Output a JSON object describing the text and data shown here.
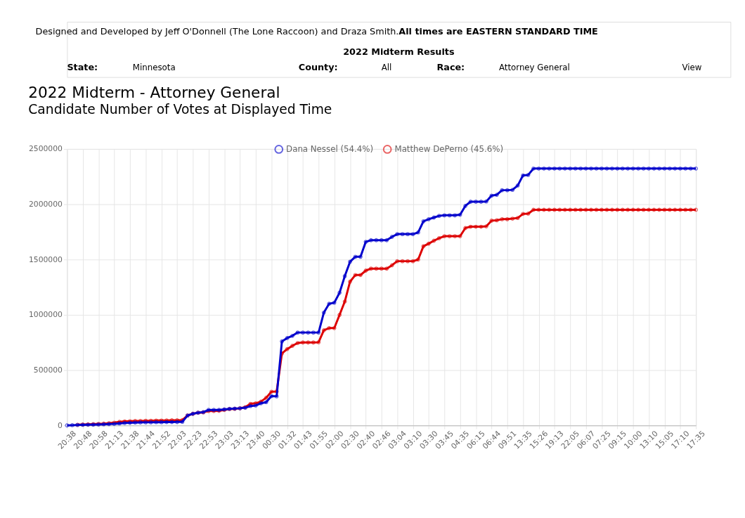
{
  "chart_data": {
    "type": "line",
    "title": "2022 Midterm - Attorney General",
    "subtitle": "Candidate Number of Votes at Displayed Time",
    "annotations": [
      "Designed and Developed by Jeff O'Donnell (The Lone Raccoon) and Draza Smith.",
      "All times are EASTERN STANDARD TIME",
      "2022 Midterm Results",
      "State:",
      "Minnesota",
      "County:",
      "All",
      "Race:",
      "Attorney General",
      "View"
    ],
    "categories": [
      "20:38",
      null,
      null,
      "20:48",
      null,
      null,
      "20:58",
      null,
      null,
      "21:13",
      null,
      null,
      "21:38",
      null,
      null,
      "21:44",
      null,
      null,
      "21:52",
      null,
      null,
      "22:03",
      null,
      null,
      "22:23",
      null,
      null,
      "22:53",
      null,
      null,
      "23:03",
      null,
      null,
      "23:13",
      null,
      null,
      "23:40",
      null,
      null,
      "00:30",
      null,
      null,
      "01:32",
      null,
      null,
      "01:43",
      null,
      null,
      "01:55",
      null,
      null,
      "02:00",
      null,
      null,
      "02:30",
      null,
      null,
      "02:40",
      null,
      null,
      "02:46",
      null,
      null,
      "03:04",
      null,
      null,
      "03:10",
      null,
      null,
      "03:30",
      null,
      null,
      "03:45",
      null,
      null,
      "04:35",
      null,
      null,
      "06:15",
      null,
      null,
      "06:44",
      null,
      null,
      "09:51",
      null,
      null,
      "13:35",
      null,
      null,
      "15:26",
      null,
      null,
      "19:13",
      null,
      null,
      "22:05",
      null,
      null,
      "06:07",
      null,
      null,
      "07:25",
      null,
      null,
      "09:15",
      null,
      null,
      "10:00",
      null,
      null,
      "13:10",
      null,
      null,
      "15:05",
      null,
      null,
      "17:10",
      null,
      null,
      "17:35"
    ],
    "series": [
      {
        "name": "Dana Nessel (54.4%)",
        "color": "#0000cc",
        "values": [
          0,
          2000,
          4000,
          5000,
          6000,
          7000,
          8000,
          10000,
          12000,
          14000,
          18000,
          22000,
          24000,
          26000,
          27000,
          28000,
          28000,
          29000,
          29000,
          30000,
          30000,
          31000,
          32000,
          90000,
          105000,
          115000,
          120000,
          140000,
          140000,
          140000,
          145000,
          150000,
          152000,
          155000,
          160000,
          175000,
          180000,
          200000,
          210000,
          265000,
          263000,
          760000,
          790000,
          810000,
          840000,
          840000,
          840000,
          840000,
          840000,
          1020000,
          1100000,
          1110000,
          1200000,
          1350000,
          1480000,
          1525000,
          1525000,
          1660000,
          1675000,
          1675000,
          1675000,
          1675000,
          1705000,
          1730000,
          1730000,
          1730000,
          1730000,
          1745000,
          1846000,
          1865000,
          1880000,
          1895000,
          1900000,
          1900000,
          1900000,
          1905000,
          1985000,
          2023000,
          2023000,
          2023000,
          2025000,
          2078000,
          2085000,
          2127000,
          2127000,
          2130000,
          2170000,
          2261000,
          2265000,
          2323000,
          2323000,
          2323000,
          2323000,
          2323000,
          2323000,
          2323000,
          2323000,
          2323000,
          2323000,
          2323000,
          2323000,
          2323000,
          2323000,
          2323000,
          2323000,
          2323000,
          2323000,
          2323000,
          2323000,
          2323000,
          2323000,
          2323000,
          2323000,
          2323000,
          2323000,
          2323000,
          2323000,
          2323000,
          2323000,
          2323000,
          2323000
        ]
      },
      {
        "name": "Matthew DePerno (45.6%)",
        "color": "#dd0000",
        "values": [
          null,
          null,
          6000,
          8000,
          10000,
          12000,
          14000,
          16000,
          20000,
          25000,
          32000,
          36000,
          38000,
          40000,
          40000,
          42000,
          42000,
          44000,
          44000,
          45000,
          46000,
          46000,
          48000,
          90000,
          105000,
          115000,
          118000,
          130000,
          130000,
          132000,
          140000,
          148000,
          150000,
          155000,
          165000,
          195000,
          200000,
          215000,
          250000,
          305000,
          307000,
          650000,
          690000,
          720000,
          745000,
          750000,
          750000,
          750000,
          752000,
          860000,
          880000,
          880000,
          1000000,
          1120000,
          1300000,
          1360000,
          1360000,
          1400000,
          1418000,
          1418000,
          1418000,
          1418000,
          1448000,
          1485000,
          1485000,
          1485000,
          1485000,
          1500000,
          1620000,
          1644000,
          1670000,
          1693000,
          1711000,
          1711000,
          1711000,
          1711000,
          1785000,
          1797000,
          1797000,
          1797000,
          1800000,
          1852000,
          1855000,
          1865000,
          1865000,
          1870000,
          1876000,
          1913000,
          1915000,
          1950000,
          1950000,
          1950000,
          1950000,
          1950000,
          1950000,
          1950000,
          1950000,
          1950000,
          1950000,
          1950000,
          1950000,
          1950000,
          1950000,
          1950000,
          1950000,
          1950000,
          1950000,
          1950000,
          1950000,
          1950000,
          1950000,
          1950000,
          1950000,
          1950000,
          1950000,
          1950000,
          1950000,
          1950000,
          1950000,
          1950000,
          1950000
        ]
      }
    ],
    "ylim": [
      0,
      2500000
    ],
    "yticks": [
      0,
      500000,
      1000000,
      1500000,
      2000000,
      2500000
    ],
    "grid": true,
    "legend": "top",
    "marker": "circle",
    "line_style": "solid"
  }
}
